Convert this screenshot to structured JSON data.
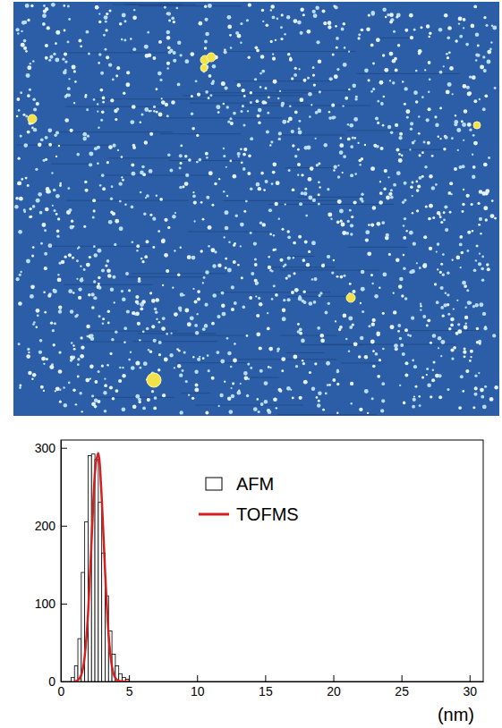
{
  "chart_data": {
    "type": "histogram",
    "x_label": "(nm)",
    "xlim": [
      0,
      31
    ],
    "ylim": [
      0,
      310
    ],
    "xticks": [
      0,
      5,
      10,
      15,
      20,
      25,
      30
    ],
    "yticks": [
      0,
      100,
      200,
      300
    ],
    "legend": "upper right",
    "series": [
      {
        "name": "AFM",
        "type": "histogram",
        "color": "#000000",
        "bins": [
          0.75,
          1.0,
          1.25,
          1.5,
          1.75,
          2.0,
          2.25,
          2.5,
          2.75,
          3.0,
          3.25,
          3.5,
          3.75,
          4.0,
          4.25,
          4.5,
          4.75,
          5.0
        ],
        "values": [
          5,
          20,
          55,
          140,
          205,
          290,
          292,
          285,
          230,
          165,
          110,
          65,
          35,
          20,
          10,
          5,
          3
        ]
      },
      {
        "name": "TOFMS",
        "type": "line",
        "color": "#d42020",
        "x": [
          1.0,
          1.25,
          1.5,
          1.75,
          2.0,
          2.25,
          2.5,
          2.75,
          3.0,
          3.25,
          3.5,
          3.75,
          4.0,
          4.25,
          4.5,
          5.0
        ],
        "values": [
          0.2,
          1.7,
          8.4,
          32,
          88,
          179,
          267,
          293,
          236,
          140,
          61,
          19.5,
          4.5,
          0.8,
          0.1,
          0
        ]
      }
    ]
  }
}
